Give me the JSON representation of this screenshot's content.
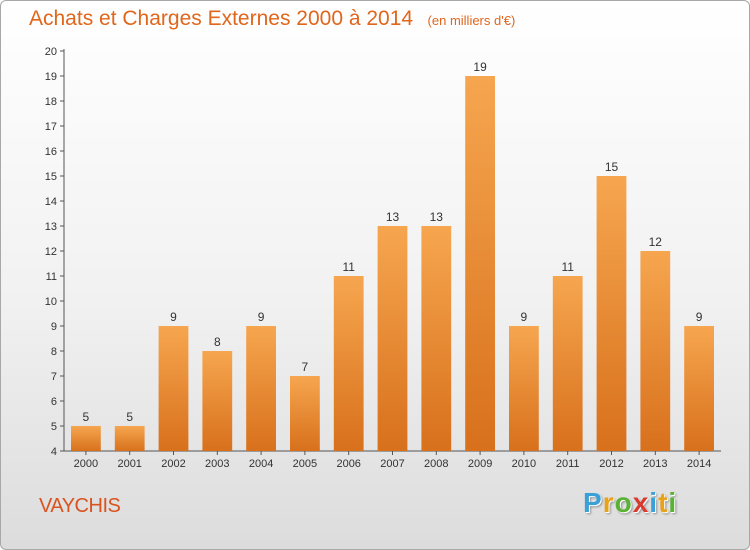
{
  "title": "Achats et Charges Externes 2000 à 2014",
  "subtitle": "(en milliers d'€)",
  "commune": "VAYCHIS",
  "logo": {
    "letters": [
      "P",
      "r",
      "o",
      "x",
      "i",
      "t",
      "i"
    ],
    "colors": [
      "#3aa0d8",
      "#e8a21a",
      "#5ab233",
      "#d83a2e",
      "#3aa0d8",
      "#e8a21a",
      "#5ab233"
    ]
  },
  "colors": {
    "title": "#e0661c",
    "bar_top": "#f6a64f",
    "bar_bottom": "#d8701c"
  },
  "chart_data": {
    "type": "bar",
    "title": "Achats et Charges Externes 2000 à 2014",
    "subtitle": "(en milliers d'€)",
    "categories": [
      "2000",
      "2001",
      "2002",
      "2003",
      "2004",
      "2005",
      "2006",
      "2007",
      "2008",
      "2009",
      "2010",
      "2011",
      "2012",
      "2013",
      "2014"
    ],
    "values": [
      5,
      5,
      9,
      8,
      9,
      7,
      11,
      13,
      13,
      19,
      9,
      11,
      15,
      12,
      9
    ],
    "data_labels": [
      "5",
      "5",
      "9",
      "8",
      "9",
      "7",
      "11",
      "13",
      "13",
      "19",
      "9",
      "11",
      "15",
      "12",
      "9"
    ],
    "ylim": [
      4,
      20
    ],
    "yticks": [
      4,
      5,
      6,
      7,
      8,
      9,
      10,
      11,
      12,
      13,
      14,
      15,
      16,
      17,
      18,
      19,
      20
    ],
    "grid": false,
    "xlabel": "",
    "ylabel": ""
  }
}
